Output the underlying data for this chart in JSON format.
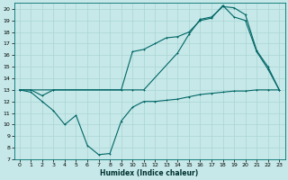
{
  "xlabel": "Humidex (Indice chaleur)",
  "bg_color": "#c6e8e8",
  "grid_color": "#aad4d4",
  "line_color": "#006666",
  "xlim": [
    -0.5,
    23.5
  ],
  "ylim": [
    7,
    20.5
  ],
  "yticks": [
    7,
    8,
    9,
    10,
    11,
    12,
    13,
    14,
    15,
    16,
    17,
    18,
    19,
    20
  ],
  "xticks": [
    0,
    1,
    2,
    3,
    4,
    5,
    6,
    7,
    8,
    9,
    10,
    11,
    12,
    13,
    14,
    15,
    16,
    17,
    18,
    19,
    20,
    21,
    22,
    23
  ],
  "line_bottom_x": [
    0,
    1,
    2,
    3,
    4,
    5,
    6,
    7,
    8,
    9,
    10,
    11,
    12,
    13,
    14,
    15,
    16,
    17,
    18,
    19,
    20,
    21,
    22,
    23
  ],
  "line_bottom_y": [
    13,
    12.8,
    12,
    11.2,
    10.0,
    10.8,
    8.2,
    7.4,
    7.5,
    10.3,
    11.5,
    12.0,
    12.0,
    12.1,
    12.2,
    12.4,
    12.6,
    12.7,
    12.8,
    12.9,
    12.9,
    13.0,
    13.0,
    13.0
  ],
  "line_mid_x": [
    0,
    1,
    2,
    3,
    9,
    10,
    11,
    12,
    13,
    14,
    15,
    16,
    17,
    18,
    19,
    20,
    21,
    22,
    23
  ],
  "line_mid_y": [
    13,
    13,
    12.5,
    13,
    13,
    16.3,
    16.5,
    17.0,
    17.5,
    17.6,
    18.0,
    19.0,
    19.2,
    20.3,
    19.3,
    19.0,
    16.3,
    14.8,
    13
  ],
  "line_top_x": [
    0,
    3,
    10,
    11,
    14,
    15,
    16,
    17,
    18,
    19,
    20,
    21,
    22,
    23
  ],
  "line_top_y": [
    13,
    13,
    13.0,
    13.0,
    16.2,
    17.8,
    19.1,
    19.3,
    20.2,
    20.1,
    19.5,
    16.4,
    15.0,
    13
  ]
}
